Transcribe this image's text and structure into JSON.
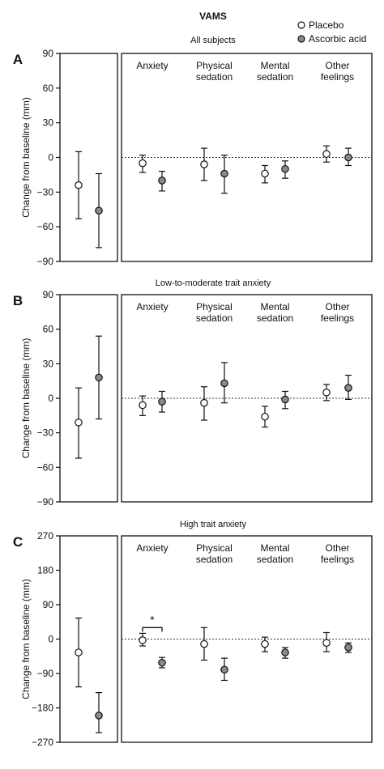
{
  "title": "VAMS",
  "legend": [
    {
      "label": "Placebo",
      "color": "#ffffff"
    },
    {
      "label": "Ascorbic acid",
      "color": "#8a8a8a"
    }
  ],
  "ylabel": "Change from baseline (mm)",
  "colors": {
    "placebo": "#ffffff",
    "ascorbic": "#8a8a8a",
    "axis": "#111111"
  },
  "chart_data": [
    {
      "type": "scatter",
      "panel": "A",
      "subtitle": "All subjects",
      "ylim": [
        -90,
        90
      ],
      "yticks": [
        90,
        60,
        30,
        0,
        -30,
        -60,
        -90
      ],
      "categories": [
        "",
        "Anxiety",
        "Physical\nsedation",
        "Mental\nsedation",
        "Other\nfeelings"
      ],
      "series": [
        {
          "name": "Placebo",
          "values": [
            -24,
            -5,
            -6,
            -14,
            3
          ],
          "err_low": [
            -53,
            -13,
            -20,
            -22,
            -4
          ],
          "err_high": [
            5,
            2,
            8,
            -7,
            10
          ]
        },
        {
          "name": "Ascorbic acid",
          "values": [
            -46,
            -20,
            -14,
            -10,
            0
          ],
          "err_low": [
            -78,
            -29,
            -31,
            -18,
            -7
          ],
          "err_high": [
            -14,
            -12,
            2,
            -3,
            8
          ]
        }
      ],
      "annotations": []
    },
    {
      "type": "scatter",
      "panel": "B",
      "subtitle": "Low-to-moderate trait anxiety",
      "ylim": [
        -90,
        90
      ],
      "yticks": [
        90,
        60,
        30,
        0,
        -30,
        -60,
        -90
      ],
      "categories": [
        "",
        "Anxiety",
        "Physical\nsedation",
        "Mental\nsedation",
        "Other\nfeelings"
      ],
      "series": [
        {
          "name": "Placebo",
          "values": [
            -21,
            -6,
            -4,
            -16,
            5
          ],
          "err_low": [
            -52,
            -15,
            -19,
            -25,
            -2
          ],
          "err_high": [
            9,
            2,
            10,
            -7,
            12
          ]
        },
        {
          "name": "Ascorbic acid",
          "values": [
            18,
            -3,
            13,
            -1,
            9
          ],
          "err_low": [
            -18,
            -12,
            -4,
            -9,
            -1
          ],
          "err_high": [
            54,
            6,
            31,
            6,
            20
          ]
        }
      ],
      "annotations": []
    },
    {
      "type": "scatter",
      "panel": "C",
      "subtitle": "High trait anxiety",
      "ylim": [
        -270,
        270
      ],
      "yticks": [
        270,
        180,
        90,
        0,
        -90,
        -180,
        -270
      ],
      "categories": [
        "",
        "Anxiety",
        "Physical\nsedation",
        "Mental\nsedation",
        "Other\nfeelings"
      ],
      "series": [
        {
          "name": "Placebo",
          "values": [
            -35,
            -3,
            -13,
            -13,
            -10
          ],
          "err_low": [
            -125,
            -18,
            -55,
            -33,
            -33
          ],
          "err_high": [
            55,
            15,
            30,
            5,
            17
          ]
        },
        {
          "name": "Ascorbic acid",
          "values": [
            -200,
            -62,
            -80,
            -35,
            -22
          ],
          "err_low": [
            -245,
            -75,
            -108,
            -50,
            -35
          ],
          "err_high": [
            -140,
            -48,
            -50,
            -22,
            -10
          ]
        }
      ],
      "annotations": [
        {
          "text": "*",
          "between": "Anxiety"
        }
      ]
    }
  ]
}
